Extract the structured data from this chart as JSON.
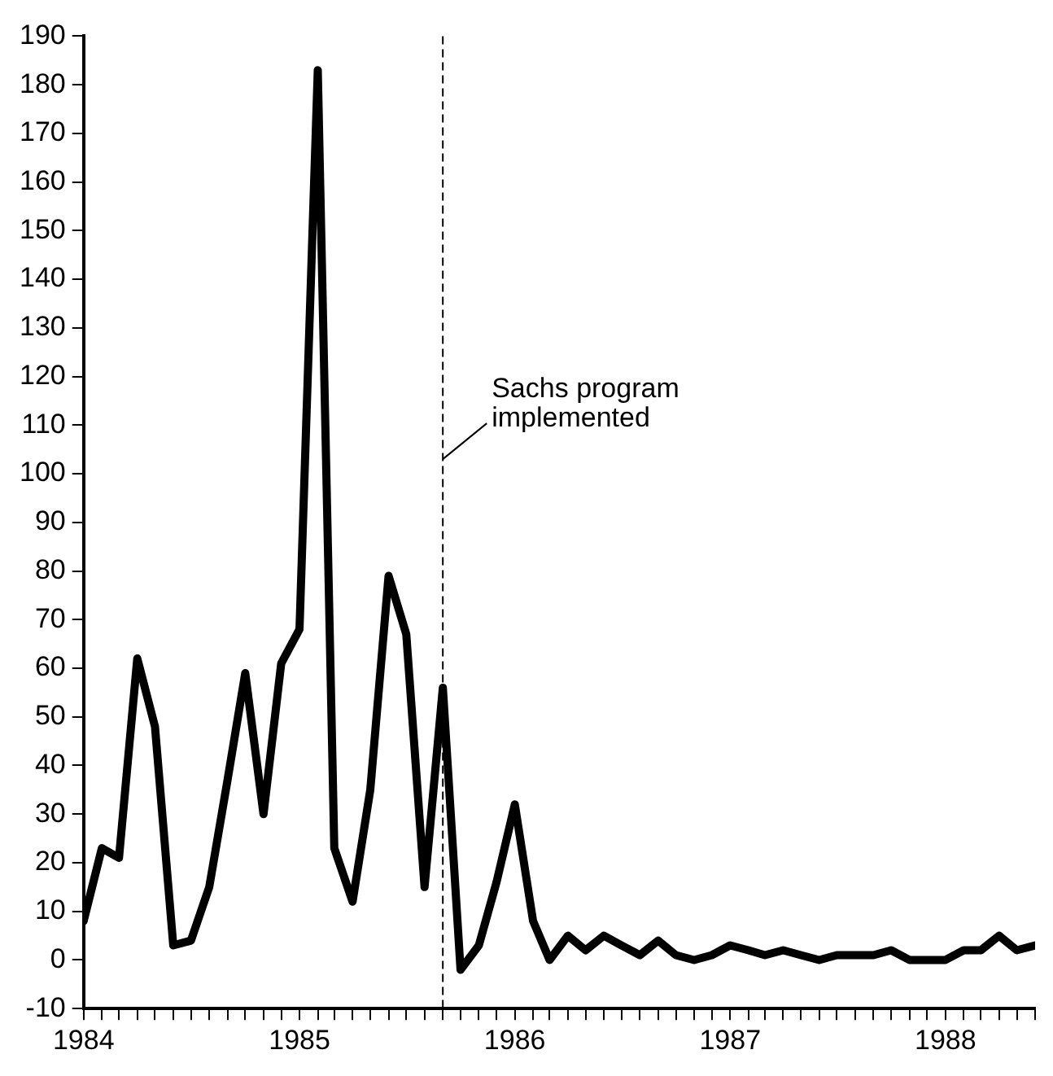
{
  "chart_data": {
    "type": "line",
    "x": [
      "1984-01",
      "1984-02",
      "1984-03",
      "1984-04",
      "1984-05",
      "1984-06",
      "1984-07",
      "1984-08",
      "1984-09",
      "1984-10",
      "1984-11",
      "1984-12",
      "1985-01",
      "1985-02",
      "1985-03",
      "1985-04",
      "1985-05",
      "1985-06",
      "1985-07",
      "1985-08",
      "1985-09",
      "1985-10",
      "1985-11",
      "1985-12",
      "1986-01",
      "1986-02",
      "1986-03",
      "1986-04",
      "1986-05",
      "1986-06",
      "1986-07",
      "1986-08",
      "1986-09",
      "1986-10",
      "1986-11",
      "1986-12",
      "1987-01",
      "1987-02",
      "1987-03",
      "1987-04",
      "1987-05",
      "1987-06",
      "1987-07",
      "1987-08",
      "1987-09",
      "1987-10",
      "1987-11",
      "1987-12",
      "1988-01",
      "1988-02",
      "1988-03",
      "1988-04",
      "1988-05",
      "1988-06"
    ],
    "series": [
      {
        "color": "#000000",
        "values": [
          8,
          23,
          21,
          62,
          48,
          3,
          4,
          15,
          37,
          59,
          30,
          61,
          68,
          183,
          23,
          12,
          35,
          79,
          67,
          15,
          56,
          -2,
          3,
          16,
          32,
          8,
          0,
          5,
          2,
          5,
          3,
          1,
          4,
          1,
          0,
          1,
          3,
          2,
          1,
          2,
          1,
          0,
          1,
          1,
          1,
          2,
          0,
          0,
          0,
          2,
          2,
          5,
          2,
          3
        ]
      }
    ],
    "xlim": [
      "1984-01",
      "1988-06"
    ],
    "xticks": [
      {
        "value": "1984-01",
        "label": "1984"
      },
      {
        "value": "1984-02",
        "label": null
      },
      {
        "value": "1984-03",
        "label": null
      },
      {
        "value": "1984-04",
        "label": null
      },
      {
        "value": "1984-05",
        "label": null
      },
      {
        "value": "1984-06",
        "label": null
      },
      {
        "value": "1984-07",
        "label": null
      },
      {
        "value": "1984-08",
        "label": null
      },
      {
        "value": "1984-09",
        "label": null
      },
      {
        "value": "1984-10",
        "label": null
      },
      {
        "value": "1984-11",
        "label": null
      },
      {
        "value": "1984-12",
        "label": null
      },
      {
        "value": "1985-01",
        "label": "1985"
      },
      {
        "value": "1985-02",
        "label": null
      },
      {
        "value": "1985-03",
        "label": null
      },
      {
        "value": "1985-04",
        "label": null
      },
      {
        "value": "1985-05",
        "label": null
      },
      {
        "value": "1985-06",
        "label": null
      },
      {
        "value": "1985-07",
        "label": null
      },
      {
        "value": "1985-08",
        "label": null
      },
      {
        "value": "1985-09",
        "label": null
      },
      {
        "value": "1985-10",
        "label": null
      },
      {
        "value": "1985-11",
        "label": null
      },
      {
        "value": "1985-12",
        "label": null
      },
      {
        "value": "1986-01",
        "label": "1986"
      },
      {
        "value": "1986-02",
        "label": null
      },
      {
        "value": "1986-03",
        "label": null
      },
      {
        "value": "1986-04",
        "label": null
      },
      {
        "value": "1986-05",
        "label": null
      },
      {
        "value": "1986-06",
        "label": null
      },
      {
        "value": "1986-07",
        "label": null
      },
      {
        "value": "1986-08",
        "label": null
      },
      {
        "value": "1986-09",
        "label": null
      },
      {
        "value": "1986-10",
        "label": null
      },
      {
        "value": "1986-11",
        "label": null
      },
      {
        "value": "1986-12",
        "label": null
      },
      {
        "value": "1987-01",
        "label": "1987"
      },
      {
        "value": "1987-02",
        "label": null
      },
      {
        "value": "1987-03",
        "label": null
      },
      {
        "value": "1987-04",
        "label": null
      },
      {
        "value": "1987-05",
        "label": null
      },
      {
        "value": "1987-06",
        "label": null
      },
      {
        "value": "1987-07",
        "label": null
      },
      {
        "value": "1987-08",
        "label": null
      },
      {
        "value": "1987-09",
        "label": null
      },
      {
        "value": "1987-10",
        "label": null
      },
      {
        "value": "1987-11",
        "label": null
      },
      {
        "value": "1987-12",
        "label": null
      },
      {
        "value": "1988-01",
        "label": "1988"
      },
      {
        "value": "1988-02",
        "label": null
      },
      {
        "value": "1988-03",
        "label": null
      },
      {
        "value": "1988-04",
        "label": null
      },
      {
        "value": "1988-05",
        "label": null
      },
      {
        "value": "1988-06",
        "label": null
      }
    ],
    "ylim": [
      -10,
      190
    ],
    "yticks": [
      -10,
      0,
      10,
      20,
      30,
      40,
      50,
      60,
      70,
      80,
      90,
      100,
      110,
      120,
      130,
      140,
      150,
      160,
      170,
      180,
      190
    ],
    "ref_lines": [
      {
        "axis": "x",
        "value": "1985-09",
        "label": "Sachs program implemented",
        "line_style": "dashed",
        "color": "#000000"
      }
    ],
    "grid": false,
    "legend": false,
    "marker": "none",
    "line_style": "solid"
  }
}
